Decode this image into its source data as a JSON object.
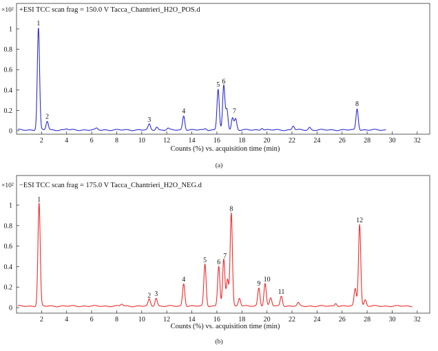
{
  "chart_data": [
    {
      "type": "line",
      "title": "+ESI TCC scan frag = 150.0 V Tacca_Chantrieri_H2O_POS.d",
      "multiplier": "×10²",
      "xlabel": "Counts (%) vs. acquisition time (min)",
      "caption": "(a)",
      "color": "#2b2bd6",
      "xlim": [
        0,
        33
      ],
      "ylim": [
        0,
        1.1
      ],
      "xticks": [
        2,
        4,
        6,
        8,
        10,
        12,
        14,
        16,
        18,
        20,
        22,
        24,
        26,
        28,
        30,
        32
      ],
      "yticks": [
        0,
        0.2,
        0.4,
        0.6,
        0.8,
        1
      ],
      "ytick_labels": [
        "0",
        "0.2",
        "0.4",
        "0.6",
        "0.8",
        "1"
      ],
      "trace_range": [
        0.1,
        29.5
      ],
      "baseline": 0.008,
      "peaks": [
        {
          "x": 1.75,
          "y": 1.0
        },
        {
          "x": 2.45,
          "y": 0.085
        },
        {
          "x": 4.0,
          "y": 0.012
        },
        {
          "x": 6.4,
          "y": 0.015
        },
        {
          "x": 10.6,
          "y": 0.055
        },
        {
          "x": 11.2,
          "y": 0.03
        },
        {
          "x": 12.1,
          "y": 0.015
        },
        {
          "x": 13.35,
          "y": 0.14
        },
        {
          "x": 15.1,
          "y": 0.015
        },
        {
          "x": 16.1,
          "y": 0.4
        },
        {
          "x": 16.55,
          "y": 0.43
        },
        {
          "x": 16.8,
          "y": 0.2
        },
        {
          "x": 17.25,
          "y": 0.12
        },
        {
          "x": 17.5,
          "y": 0.11
        },
        {
          "x": 19.6,
          "y": 0.02
        },
        {
          "x": 22.1,
          "y": 0.04
        },
        {
          "x": 23.4,
          "y": 0.025
        },
        {
          "x": 27.2,
          "y": 0.21
        }
      ],
      "peak_labels": [
        {
          "label": "1",
          "x": 1.75,
          "y": 1.0
        },
        {
          "label": "2",
          "x": 2.45,
          "y": 0.085
        },
        {
          "label": "3",
          "x": 10.6,
          "y": 0.055
        },
        {
          "label": "4",
          "x": 13.35,
          "y": 0.14
        },
        {
          "label": "5",
          "x": 16.1,
          "y": 0.4
        },
        {
          "label": "6",
          "x": 16.55,
          "y": 0.43
        },
        {
          "label": "7",
          "x": 17.4,
          "y": 0.14
        },
        {
          "label": "8",
          "x": 27.2,
          "y": 0.21
        }
      ]
    },
    {
      "type": "line",
      "title": "−ESI TCC scan frag = 175.0 V Tacca_Chantrieri_H2O_NEG.d",
      "multiplier": "×10²",
      "xlabel": "Counts (%) vs. acquisition time (min)",
      "caption": "(b)",
      "color": "#ee2b2b",
      "xlim": [
        0,
        33
      ],
      "ylim": [
        0,
        1.1
      ],
      "xticks": [
        2,
        4,
        6,
        8,
        10,
        12,
        14,
        16,
        18,
        20,
        22,
        24,
        26,
        28,
        30,
        32
      ],
      "yticks": [
        0,
        0.2,
        0.4,
        0.6,
        0.8,
        1
      ],
      "ytick_labels": [
        "0",
        "0.2",
        "0.4",
        "0.6",
        "0.8",
        "1"
      ],
      "trace_range": [
        0.1,
        31.6
      ],
      "baseline": 0.015,
      "peaks": [
        {
          "x": 1.8,
          "y": 1.0
        },
        {
          "x": 8.4,
          "y": 0.02
        },
        {
          "x": 10.6,
          "y": 0.065
        },
        {
          "x": 11.15,
          "y": 0.08
        },
        {
          "x": 13.35,
          "y": 0.22
        },
        {
          "x": 15.05,
          "y": 0.41
        },
        {
          "x": 16.15,
          "y": 0.39
        },
        {
          "x": 16.55,
          "y": 0.45
        },
        {
          "x": 16.85,
          "y": 0.26
        },
        {
          "x": 17.15,
          "y": 0.91
        },
        {
          "x": 17.8,
          "y": 0.08
        },
        {
          "x": 19.35,
          "y": 0.18
        },
        {
          "x": 19.85,
          "y": 0.22
        },
        {
          "x": 20.3,
          "y": 0.08
        },
        {
          "x": 21.15,
          "y": 0.1
        },
        {
          "x": 22.5,
          "y": 0.03
        },
        {
          "x": 25.5,
          "y": 0.03
        },
        {
          "x": 27.05,
          "y": 0.17
        },
        {
          "x": 27.4,
          "y": 0.8
        },
        {
          "x": 27.85,
          "y": 0.06
        }
      ],
      "peak_labels": [
        {
          "label": "1",
          "x": 1.8,
          "y": 1.0
        },
        {
          "label": "2",
          "x": 10.6,
          "y": 0.065
        },
        {
          "label": "3",
          "x": 11.15,
          "y": 0.08
        },
        {
          "label": "4",
          "x": 13.35,
          "y": 0.22
        },
        {
          "label": "5",
          "x": 15.05,
          "y": 0.41
        },
        {
          "label": "6",
          "x": 16.15,
          "y": 0.39
        },
        {
          "label": "7",
          "x": 16.65,
          "y": 0.45
        },
        {
          "label": "8",
          "x": 17.15,
          "y": 0.91
        },
        {
          "label": "9",
          "x": 19.35,
          "y": 0.18
        },
        {
          "label": "10",
          "x": 20.0,
          "y": 0.22
        },
        {
          "label": "11",
          "x": 21.15,
          "y": 0.1
        },
        {
          "label": "12",
          "x": 27.4,
          "y": 0.8
        }
      ]
    }
  ]
}
